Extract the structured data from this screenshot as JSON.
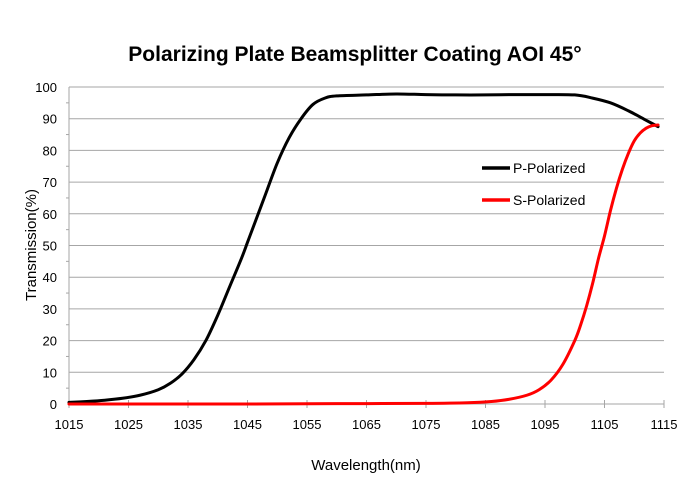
{
  "chart_data": {
    "type": "line",
    "title": "Polarizing Plate Beamsplitter Coating AOI 45°",
    "xlabel": "Wavelength(nm)",
    "ylabel": "Transmission(%)",
    "xlim": [
      1015,
      1115
    ],
    "ylim": [
      0,
      100
    ],
    "xticks": [
      1015,
      1025,
      1035,
      1045,
      1055,
      1065,
      1075,
      1085,
      1095,
      1105,
      1115
    ],
    "yticks": [
      0,
      10,
      20,
      30,
      40,
      50,
      60,
      70,
      80,
      90,
      100
    ],
    "grid": "horizontal",
    "legend_position": "right",
    "series": [
      {
        "name": "P-Polarized",
        "color": "#000000",
        "x": [
          1015,
          1018,
          1021,
          1024,
          1027,
          1030,
          1032,
          1034,
          1036,
          1038,
          1040,
          1042,
          1044,
          1045,
          1046,
          1048,
          1050,
          1052,
          1054,
          1056,
          1058,
          1060,
          1065,
          1070,
          1075,
          1080,
          1085,
          1090,
          1095,
          1100,
          1103,
          1106,
          1109,
          1112,
          1114
        ],
        "y": [
          0.5,
          0.8,
          1.2,
          1.8,
          2.8,
          4.5,
          6.5,
          9.5,
          14,
          20,
          28,
          37,
          46,
          51,
          56,
          66,
          76,
          84,
          90,
          94.5,
          96.5,
          97.2,
          97.5,
          97.8,
          97.6,
          97.5,
          97.5,
          97.6,
          97.6,
          97.5,
          96.5,
          95,
          92.5,
          89.5,
          87.5
        ]
      },
      {
        "name": "S-Polarized",
        "color": "#ff0000",
        "x": [
          1015,
          1030,
          1045,
          1060,
          1075,
          1082,
          1086,
          1089,
          1092,
          1094,
          1096,
          1098,
          1100,
          1101,
          1102,
          1103,
          1104,
          1105,
          1106,
          1107,
          1108,
          1109,
          1110,
          1111,
          1112,
          1113,
          1114
        ],
        "y": [
          0,
          0,
          0,
          0.1,
          0.2,
          0.4,
          0.8,
          1.5,
          2.8,
          4.5,
          7.5,
          12.5,
          20,
          25,
          31,
          38,
          46,
          53,
          61,
          68,
          74,
          79,
          83,
          85.5,
          87,
          87.8,
          88
        ]
      }
    ]
  }
}
